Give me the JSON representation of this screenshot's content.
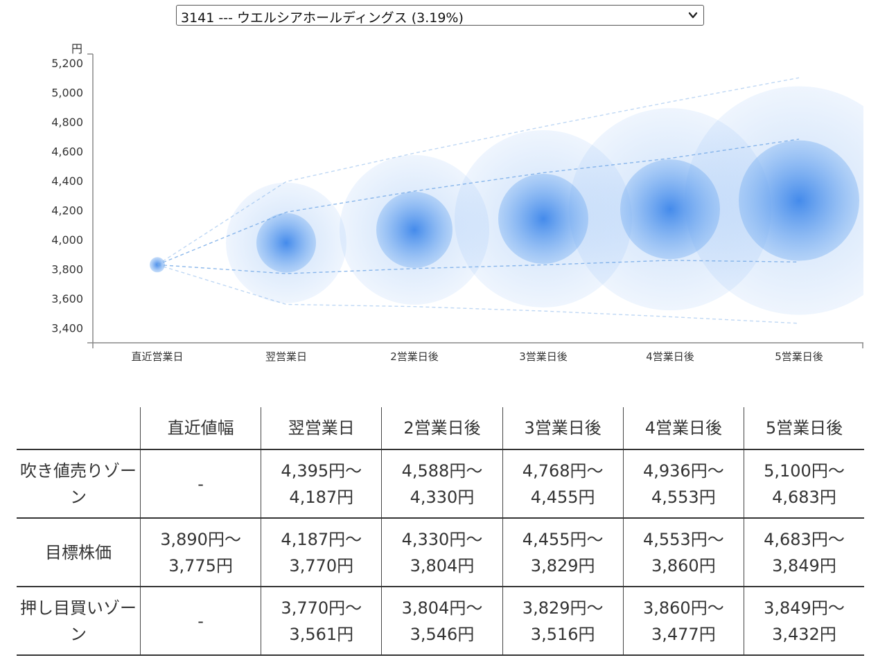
{
  "selector": {
    "value": "3141 --- ウエルシアホールディングス (3.19%)"
  },
  "chart_data": {
    "type": "scatter",
    "ylabel": "円",
    "ylim": [
      3300,
      5200
    ],
    "yticks": [
      3400,
      3600,
      3800,
      4000,
      4200,
      4400,
      4600,
      4800,
      5000,
      5200
    ],
    "ytick_labels": [
      "3,400",
      "3,600",
      "3,800",
      "4,000",
      "4,200",
      "4,400",
      "4,600",
      "4,800",
      "5,000",
      "5,200"
    ],
    "categories": [
      "直近営業日",
      "翌営業日",
      "2営業日後",
      "3営業日後",
      "4営業日後",
      "5営業日後"
    ],
    "series": [
      {
        "values": [
          3830,
          4395,
          4588,
          4768,
          4936,
          5100
        ]
      },
      {
        "values": [
          3830,
          4187,
          4330,
          4455,
          4553,
          4683
        ]
      },
      {
        "values": [
          3830,
          3770,
          3804,
          3829,
          3860,
          3849
        ]
      },
      {
        "values": [
          3830,
          3561,
          3546,
          3516,
          3477,
          3432
        ]
      }
    ],
    "centers": [
      3830,
      3979,
      4067,
      4142,
      4207,
      4266
    ],
    "grid": false,
    "colors": {
      "bubble": "#5b9cf0",
      "line": "#6fa6e6"
    }
  },
  "table": {
    "headers": [
      "",
      "直近値幅",
      "翌営業日",
      "2営業日後",
      "3営業日後",
      "4営業日後",
      "5営業日後"
    ],
    "rows": [
      {
        "label": "吹き値売りゾーン",
        "cells": [
          [
            "-",
            ""
          ],
          [
            "4,395円〜",
            "4,187円"
          ],
          [
            "4,588円〜",
            "4,330円"
          ],
          [
            "4,768円〜",
            "4,455円"
          ],
          [
            "4,936円〜",
            "4,553円"
          ],
          [
            "5,100円〜",
            "4,683円"
          ]
        ]
      },
      {
        "label": "目標株価",
        "cells": [
          [
            "3,890円〜",
            "3,775円"
          ],
          [
            "4,187円〜",
            "3,770円"
          ],
          [
            "4,330円〜",
            "3,804円"
          ],
          [
            "4,455円〜",
            "3,829円"
          ],
          [
            "4,553円〜",
            "3,860円"
          ],
          [
            "4,683円〜",
            "3,849円"
          ]
        ]
      },
      {
        "label": "押し目買いゾーン",
        "cells": [
          [
            "-",
            ""
          ],
          [
            "3,770円〜",
            "3,561円"
          ],
          [
            "3,804円〜",
            "3,546円"
          ],
          [
            "3,829円〜",
            "3,516円"
          ],
          [
            "3,860円〜",
            "3,477円"
          ],
          [
            "3,849円〜",
            "3,432円"
          ]
        ]
      }
    ]
  }
}
